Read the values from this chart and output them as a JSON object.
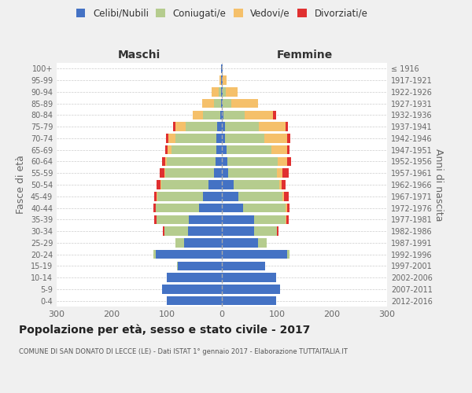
{
  "age_groups": [
    "100+",
    "95-99",
    "90-94",
    "85-89",
    "80-84",
    "75-79",
    "70-74",
    "65-69",
    "60-64",
    "55-59",
    "50-54",
    "45-49",
    "40-44",
    "35-39",
    "30-34",
    "25-29",
    "20-24",
    "15-19",
    "10-14",
    "5-9",
    "0-4"
  ],
  "birth_years": [
    "≤ 1916",
    "1917-1921",
    "1922-1926",
    "1927-1931",
    "1932-1936",
    "1937-1941",
    "1942-1946",
    "1947-1951",
    "1952-1956",
    "1957-1961",
    "1962-1966",
    "1967-1971",
    "1972-1976",
    "1977-1981",
    "1982-1986",
    "1987-1991",
    "1992-1996",
    "1997-2001",
    "2002-2006",
    "2007-2011",
    "2012-2016"
  ],
  "maschi": {
    "celibi": [
      1,
      1,
      2,
      2,
      3,
      8,
      10,
      10,
      12,
      15,
      25,
      35,
      42,
      60,
      62,
      68,
      120,
      80,
      100,
      108,
      100
    ],
    "coniugati": [
      0,
      1,
      4,
      12,
      32,
      58,
      75,
      82,
      88,
      88,
      85,
      82,
      78,
      58,
      42,
      16,
      5,
      1,
      0,
      0,
      0
    ],
    "vedovi": [
      0,
      2,
      12,
      22,
      18,
      18,
      12,
      6,
      3,
      2,
      2,
      1,
      0,
      0,
      0,
      0,
      0,
      0,
      0,
      0,
      0
    ],
    "divorziati": [
      0,
      0,
      0,
      0,
      0,
      5,
      5,
      5,
      6,
      8,
      6,
      5,
      5,
      5,
      3,
      1,
      0,
      0,
      0,
      0,
      0
    ]
  },
  "femmine": {
    "nubili": [
      1,
      1,
      2,
      2,
      3,
      5,
      5,
      8,
      10,
      12,
      22,
      30,
      38,
      58,
      58,
      65,
      118,
      78,
      98,
      105,
      98
    ],
    "coniugate": [
      0,
      1,
      5,
      15,
      38,
      62,
      72,
      82,
      92,
      88,
      82,
      80,
      78,
      58,
      42,
      16,
      5,
      1,
      0,
      0,
      0
    ],
    "vedove": [
      1,
      6,
      22,
      48,
      52,
      48,
      42,
      28,
      16,
      10,
      5,
      3,
      2,
      1,
      0,
      0,
      0,
      0,
      0,
      0,
      0
    ],
    "divorziate": [
      0,
      0,
      0,
      0,
      5,
      5,
      5,
      5,
      8,
      12,
      6,
      8,
      5,
      5,
      3,
      1,
      0,
      0,
      0,
      0,
      0
    ]
  },
  "colors": {
    "celibi": "#4472C4",
    "coniugati": "#b5cc8e",
    "vedovi": "#f5c06a",
    "divorziati": "#e03030"
  },
  "title": "Popolazione per età, sesso e stato civile - 2017",
  "subtitle": "COMUNE DI SAN DONATO DI LECCE (LE) - Dati ISTAT 1° gennaio 2017 - Elaborazione TUTTAITALIA.IT",
  "xlim": 300,
  "bg_color": "#f0f0f0",
  "plot_bg": "#ffffff",
  "grid_color": "#cccccc"
}
